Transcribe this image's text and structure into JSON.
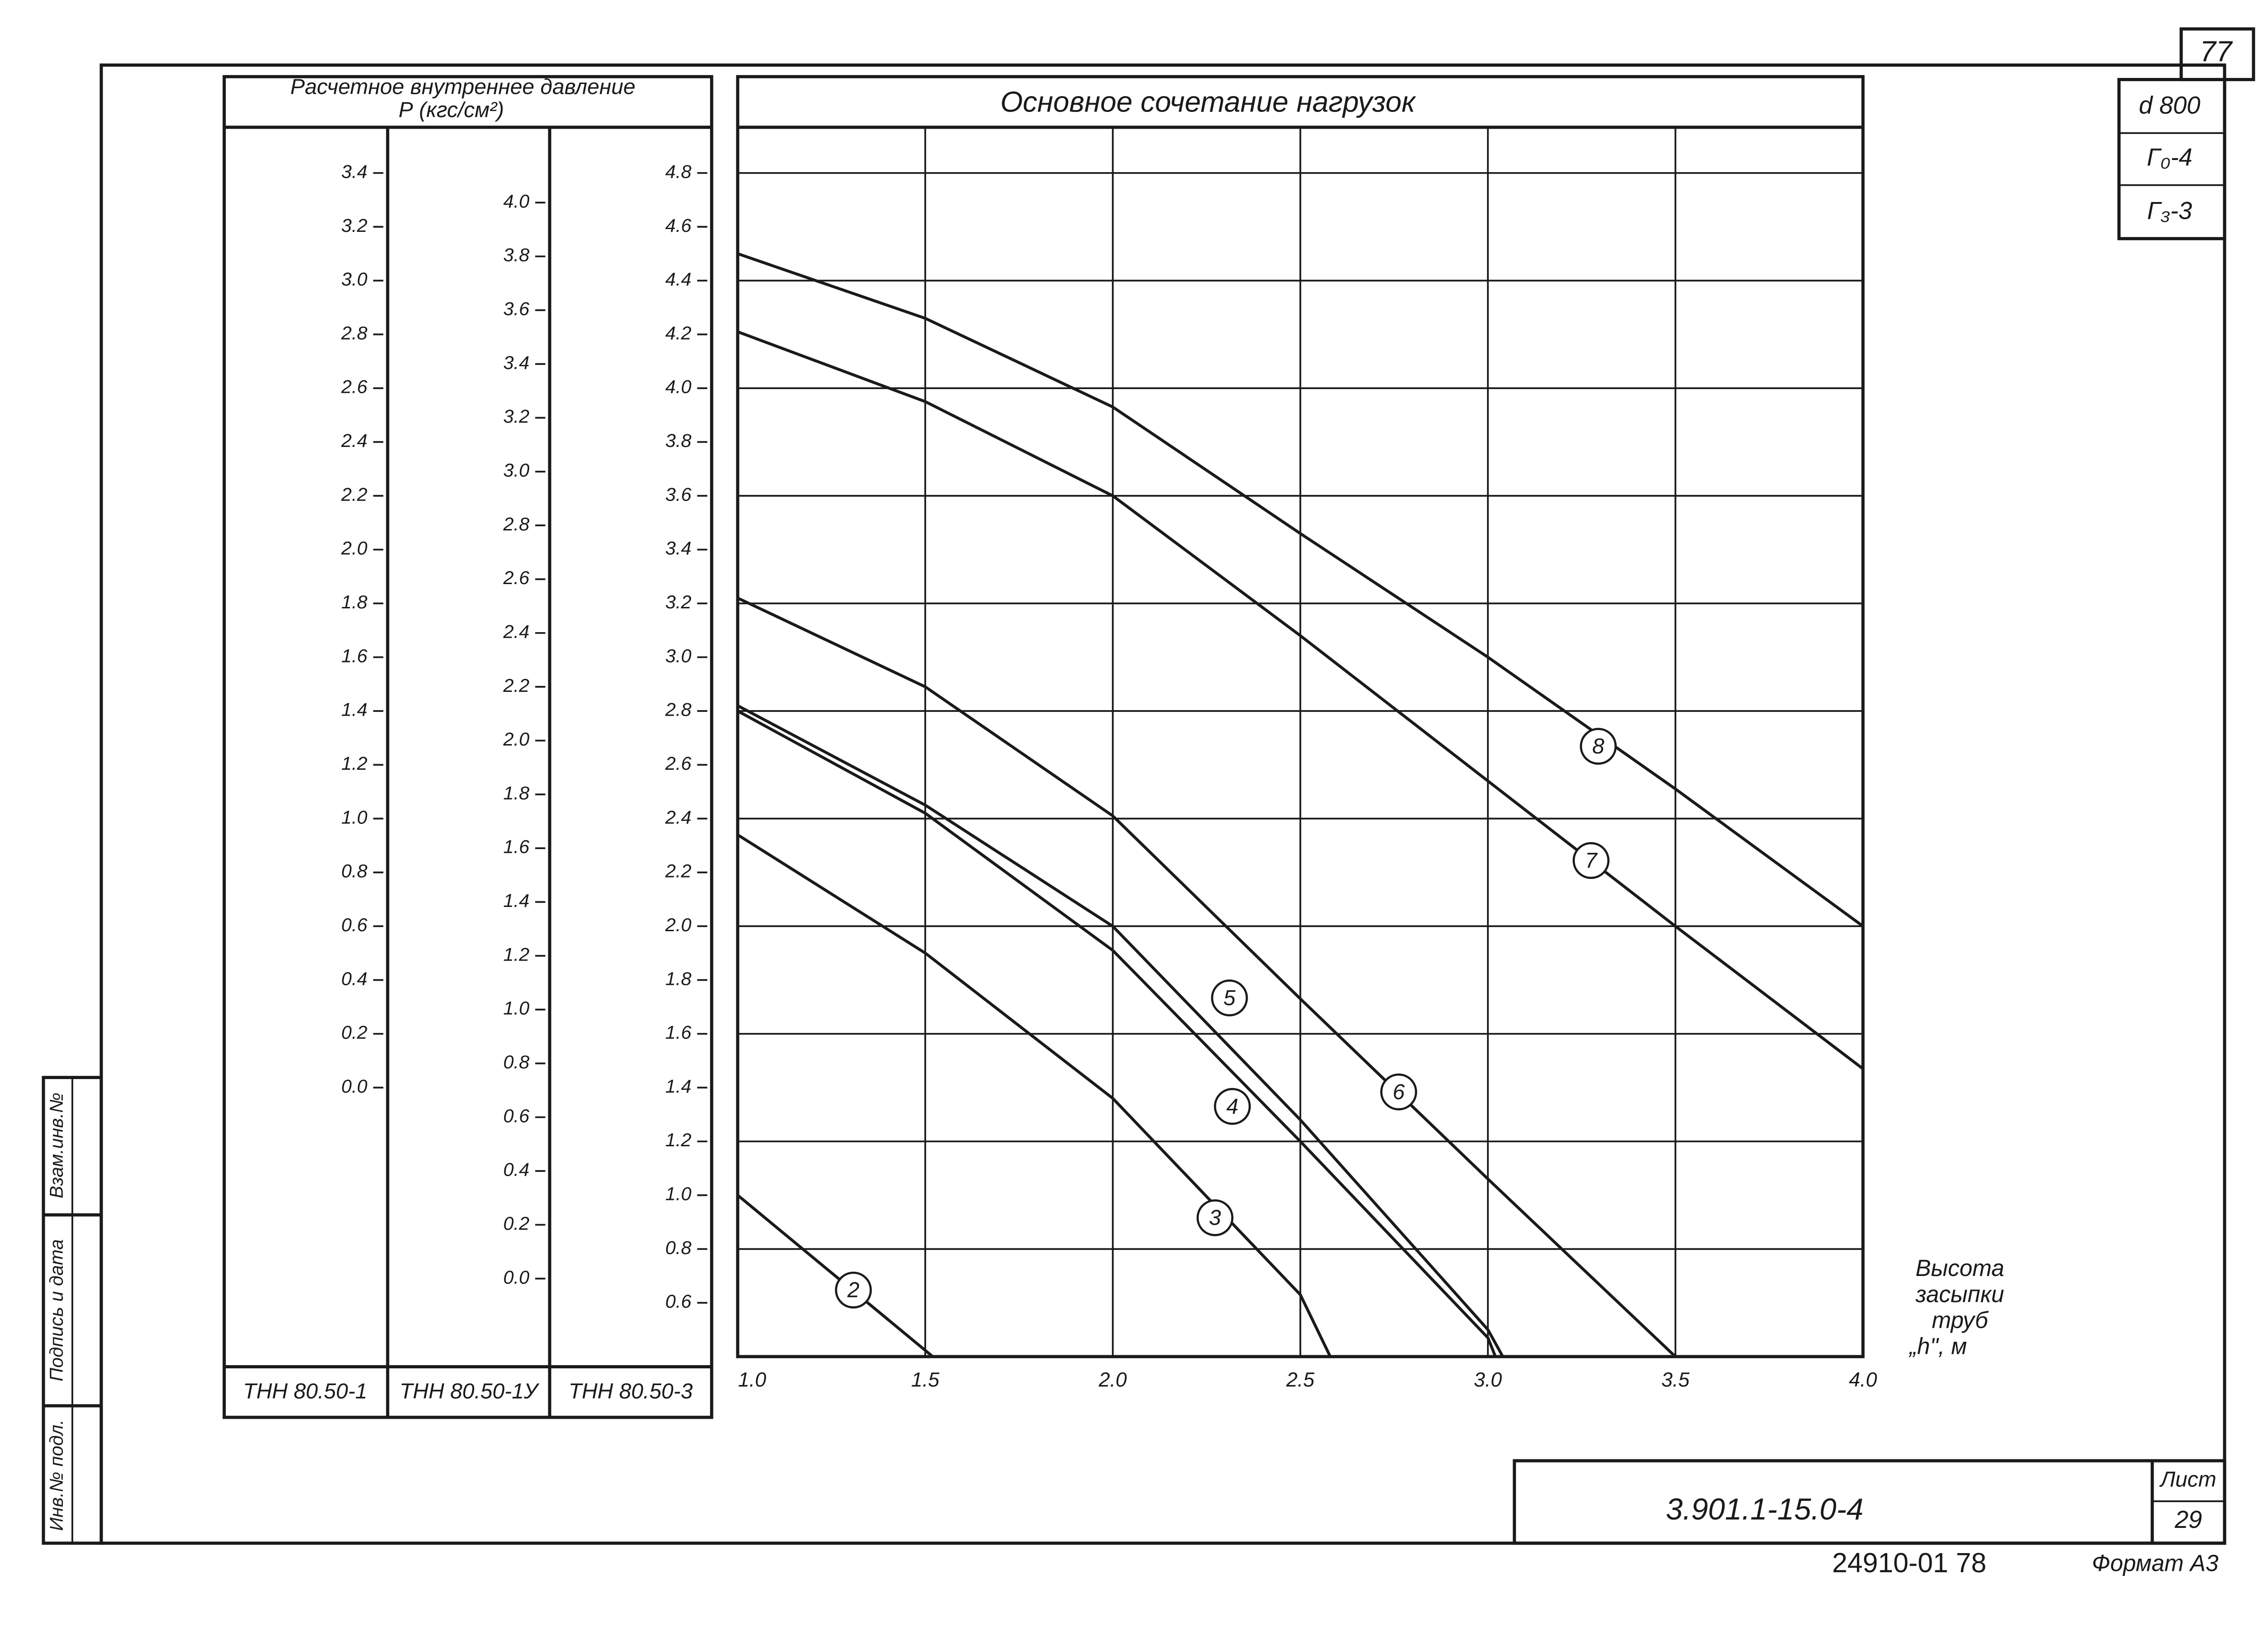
{
  "chart_data": {
    "type": "line",
    "title": "Основное сочетание нагрузок",
    "ylabel": "Расчетное внутреннее давление",
    "ylabel_unit": "Р (кгс/см²)",
    "xlabel": [
      "Высота",
      "засыпки",
      "труб",
      "„h\", м"
    ],
    "color": "#1a1a1a",
    "grid": true,
    "xlim": [
      1.0,
      4.0
    ],
    "xticks": [
      {
        "value": 1,
        "label": "1.0"
      },
      1.5,
      {
        "value": 2,
        "label": "2.0"
      },
      2.5,
      {
        "value": 3,
        "label": "3.0"
      },
      3.5,
      {
        "value": 4,
        "label": "4.0"
      }
    ],
    "scale_name": "ТНН 80.50-3",
    "ylim": [
      0.4,
      4.97
    ],
    "yticks": [
      4.8,
      4.6,
      4.4,
      4.2,
      {
        "value": 4,
        "label": "4.0"
      },
      3.8,
      3.6,
      3.4,
      3.2,
      {
        "value": 3,
        "label": "3.0"
      },
      2.8,
      2.6,
      2.4,
      2.2,
      {
        "value": 2,
        "label": "2.0"
      },
      1.8,
      1.6,
      1.4,
      1.2,
      {
        "value": 1,
        "label": "1.0"
      },
      0.8,
      0.6
    ],
    "extra_scales": [
      {
        "name": "ТНН 80.50-1",
        "ylim": [
          -1.0,
          3.57
        ],
        "yticks": [
          3.4,
          3.2,
          {
            "value": 3,
            "label": "3.0"
          },
          2.8,
          2.6,
          2.4,
          2.2,
          {
            "value": 2,
            "label": "2.0"
          },
          1.8,
          1.6,
          1.4,
          1.2,
          {
            "value": 1,
            "label": "1.0"
          },
          0.8,
          0.6,
          0.4,
          0.2,
          {
            "value": 0,
            "label": "0.0"
          }
        ]
      },
      {
        "name": "ТНН 80.50-1У",
        "ylim": [
          -0.29,
          4.28
        ],
        "yticks": [
          {
            "value": 4,
            "label": "4.0"
          },
          3.8,
          3.6,
          3.4,
          3.2,
          {
            "value": 3,
            "label": "3.0"
          },
          2.8,
          2.6,
          2.4,
          2.2,
          {
            "value": 2,
            "label": "2.0"
          },
          1.8,
          1.6,
          1.4,
          1.2,
          {
            "value": 1,
            "label": "1.0"
          },
          0.8,
          0.6,
          0.4,
          0.2,
          {
            "value": 0,
            "label": "0.0"
          }
        ]
      }
    ],
    "series": [
      {
        "name": "2",
        "x": [
          1.0,
          1.52
        ],
        "values": [
          1.0,
          0.4
        ]
      },
      {
        "name": "3",
        "x": [
          1.0,
          1.5,
          2.0,
          2.5,
          2.58
        ],
        "values": [
          2.34,
          1.9,
          1.36,
          0.63,
          0.4
        ]
      },
      {
        "name": "4",
        "x": [
          1.0,
          1.5,
          2.0,
          2.5,
          3.0,
          3.02
        ],
        "values": [
          2.8,
          2.42,
          1.91,
          1.2,
          0.47,
          0.4
        ]
      },
      {
        "name": "5",
        "x": [
          1.0,
          1.5,
          2.0,
          2.5,
          3.0,
          3.04
        ],
        "values": [
          2.82,
          2.45,
          2.0,
          1.28,
          0.5,
          0.4
        ]
      },
      {
        "name": "6",
        "x": [
          1.0,
          1.5,
          2.0,
          2.5,
          3.0,
          3.5
        ],
        "values": [
          3.22,
          2.89,
          2.41,
          1.73,
          1.06,
          0.4
        ]
      },
      {
        "name": "7",
        "x": [
          1.0,
          1.5,
          2.0,
          2.5,
          3.0,
          3.5,
          4.0
        ],
        "values": [
          4.21,
          3.95,
          3.6,
          3.08,
          2.54,
          2.0,
          1.47
        ]
      },
      {
        "name": "8",
        "x": [
          1.0,
          1.5,
          2.0,
          2.5,
          3.0,
          3.5,
          4.0
        ],
        "values": [
          4.5,
          4.26,
          3.93,
          3.46,
          3.0,
          2.51,
          2.0
        ]
      }
    ]
  },
  "stamp": {
    "sheet_no": "77",
    "diameter": "d 800",
    "g0": "Г₀-4",
    "g3": "Г₃-3",
    "designation": "3.901.1-15.0-4",
    "sheet_label": "Лист",
    "sheet": "29",
    "archive": "24910-01 78",
    "format": "Формат А3",
    "side": [
      "Инв.№ подл.",
      "Подпись и дата",
      "Взам.инв.№"
    ]
  }
}
